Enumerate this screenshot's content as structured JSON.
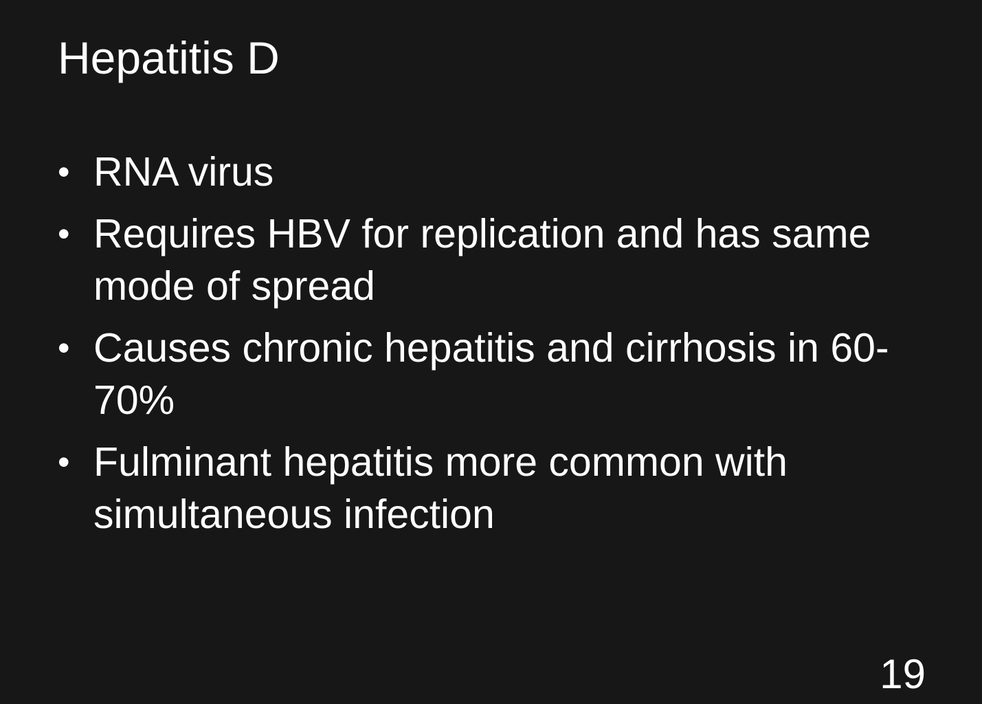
{
  "slide": {
    "title": "Hepatitis D",
    "bullets": [
      {
        "marker": "•",
        "text": "RNA virus"
      },
      {
        "marker": "•",
        "text": "Requires HBV for replication and has same mode of spread"
      },
      {
        "marker": "•",
        "text": "Causes chronic hepatitis and cirrhosis in 60-70%"
      },
      {
        "marker": "•",
        "text": "Fulminant hepatitis more common with simultaneous infection"
      }
    ],
    "page_number": "19",
    "colors": {
      "background": "#171717",
      "text": "#ffffff"
    }
  }
}
